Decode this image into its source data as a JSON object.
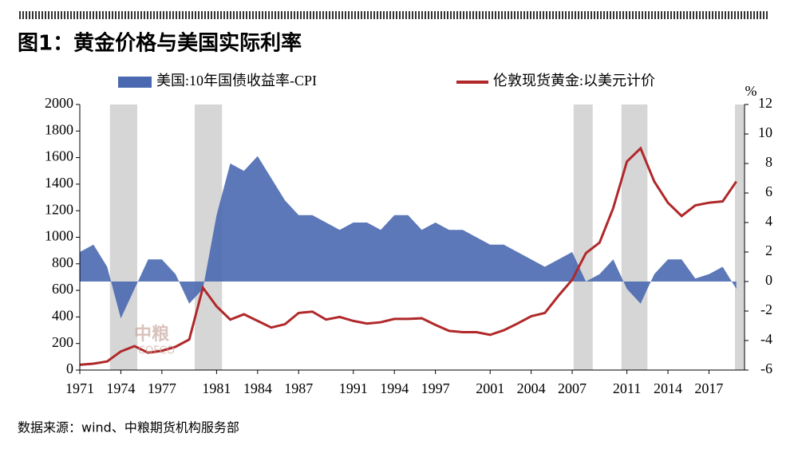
{
  "chart_data": {
    "type": "area-line",
    "title": "图1：黄金价格与美国实际利率",
    "source": "数据来源：wind、中粮期货机构服务部",
    "y2_label": "%",
    "watermark": [
      "中粮",
      "COFCO"
    ],
    "x": [
      1971,
      1972,
      1973,
      1974,
      1975,
      1976,
      1977,
      1978,
      1979,
      1980,
      1981,
      1982,
      1983,
      1984,
      1985,
      1986,
      1987,
      1988,
      1989,
      1990,
      1991,
      1992,
      1993,
      1994,
      1995,
      1996,
      1997,
      1998,
      1999,
      2000,
      2001,
      2002,
      2003,
      2004,
      2005,
      2006,
      2007,
      2008,
      2009,
      2010,
      2011,
      2012,
      2013,
      2014,
      2015,
      2016,
      2017,
      2018,
      2019
    ],
    "series": [
      {
        "name": "美国:10年国债收益率-CPI",
        "color": "#4a69b0",
        "kind": "area",
        "axis": "y2",
        "values": [
          2.0,
          2.5,
          1.0,
          -2.5,
          -0.5,
          1.5,
          1.5,
          0.5,
          -1.5,
          -0.5,
          4.5,
          8.0,
          7.5,
          8.5,
          7.0,
          5.5,
          4.5,
          4.5,
          4.0,
          3.5,
          4.0,
          4.0,
          3.5,
          4.5,
          4.5,
          3.5,
          4.0,
          3.5,
          3.5,
          3.0,
          2.5,
          2.5,
          2.0,
          1.5,
          1.0,
          1.5,
          2.0,
          0.0,
          0.5,
          1.5,
          -0.5,
          -1.5,
          0.5,
          1.5,
          1.5,
          0.2,
          0.5,
          1.0,
          -0.5
        ]
      },
      {
        "name": "伦敦现货黄金:以美元计价",
        "color": "#b0282a",
        "kind": "line",
        "values": [
          40,
          48,
          65,
          140,
          180,
          130,
          145,
          175,
          230,
          620,
          480,
          380,
          420,
          370,
          320,
          345,
          430,
          440,
          380,
          400,
          370,
          350,
          360,
          385,
          385,
          390,
          340,
          295,
          285,
          285,
          265,
          300,
          350,
          405,
          430,
          560,
          680,
          880,
          960,
          1220,
          1570,
          1670,
          1420,
          1260,
          1160,
          1240,
          1260,
          1270,
          1420
        ]
      }
    ],
    "shaded_periods": [
      [
        1973.2,
        1975.2
      ],
      [
        1979.4,
        1981.4
      ],
      [
        2007.1,
        2008.5
      ],
      [
        2010.6,
        2012.5
      ],
      [
        2018.9,
        2019.6
      ]
    ],
    "shade_color": "#cfcfcf",
    "xlim": [
      1971,
      2019.6
    ],
    "xticks": [
      1971,
      1974,
      1977,
      1981,
      1984,
      1987,
      1991,
      1994,
      1997,
      2001,
      2004,
      2007,
      2011,
      2014,
      2017
    ],
    "ylim": [
      0,
      2000
    ],
    "yticks": [
      0,
      200,
      400,
      600,
      800,
      1000,
      1200,
      1400,
      1600,
      1800,
      2000
    ],
    "y2lim": [
      -6,
      12
    ],
    "y2ticks": [
      -6,
      -4,
      -2,
      0,
      2,
      4,
      6,
      8,
      10,
      12
    ]
  }
}
